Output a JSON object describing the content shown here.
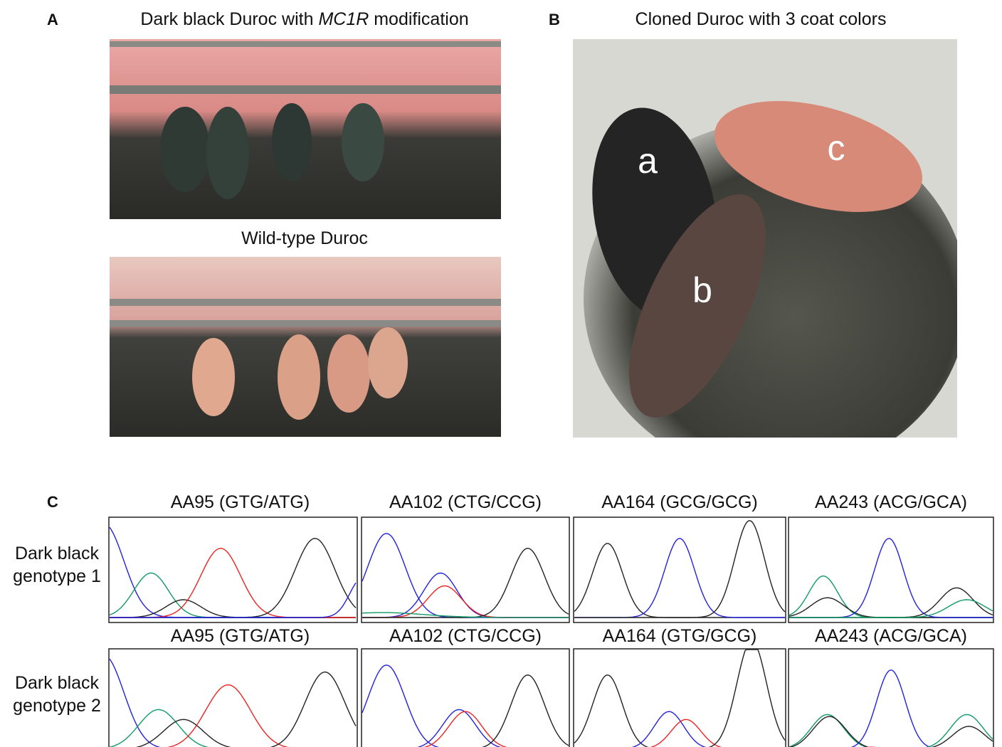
{
  "panel_a": {
    "label": "A",
    "title_parts": [
      "Dark black Duroc with ",
      "MC1R",
      " modification"
    ],
    "subtitle": "Wild-type Duroc"
  },
  "panel_b": {
    "label": "B",
    "title": "Cloned Duroc with 3 coat colors",
    "pig_labels": [
      "a",
      "b",
      "c"
    ]
  },
  "panel_c": {
    "label": "C",
    "rows": [
      {
        "label_lines": [
          "Dark black",
          "genotype 1"
        ],
        "titles": [
          "AA95 (GTG/ATG)",
          "AA102 (CTG/CCG)",
          "AA164 (GCG/GCG)",
          "AA243 (ACG/GCA)"
        ]
      },
      {
        "label_lines": [
          "Dark black",
          "genotype 2"
        ],
        "titles": [
          "AA95 (GTG/ATG)",
          "AA102 (CTG/CCG)",
          "AA164 (GTG/GCG)",
          "AA243 (ACG/GCA)"
        ]
      }
    ]
  }
}
